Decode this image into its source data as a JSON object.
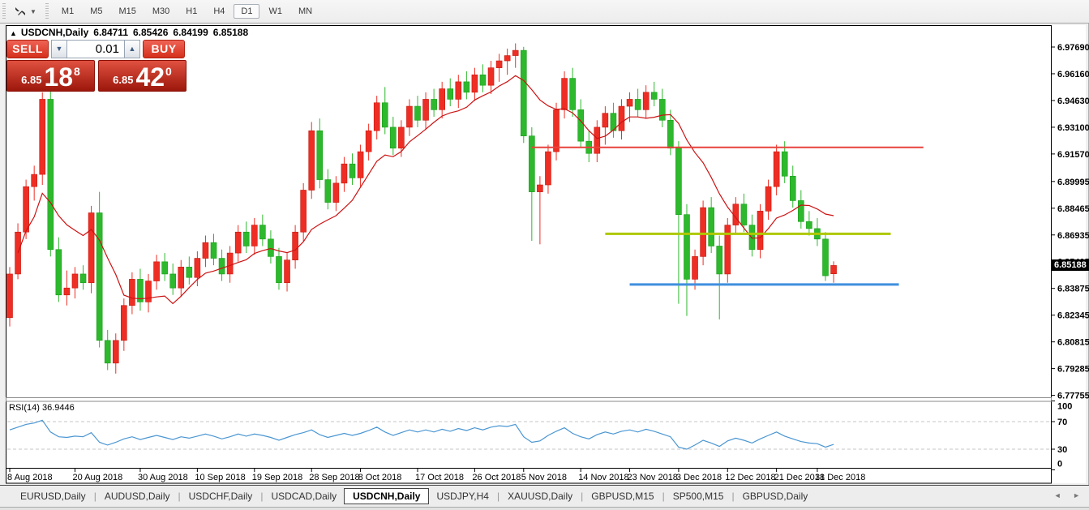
{
  "toolbar": {
    "chart_tool_icon": "trade-arrows",
    "timeframes": [
      "M1",
      "M5",
      "M15",
      "M30",
      "H1",
      "H4",
      "D1",
      "W1",
      "MN"
    ],
    "active_timeframe": "D1"
  },
  "chart_header": {
    "collapse_icon": "▲",
    "symbol": "USDCNH,Daily",
    "open": "6.84711",
    "high": "6.85426",
    "low": "6.84199",
    "close": "6.85188"
  },
  "trade_panel": {
    "sell_label": "SELL",
    "buy_label": "BUY",
    "lot_size": "0.01",
    "spin_down_icon": "▼",
    "spin_up_icon": "▲",
    "sell_price_prefix": "6.85",
    "sell_price_main": "18",
    "sell_price_sup": "8",
    "buy_price_prefix": "6.85",
    "buy_price_main": "42",
    "buy_price_sup": "0"
  },
  "chart_data": {
    "type": "candlestick",
    "symbol": "USDCNH",
    "timeframe": "Daily",
    "ylim": [
      6.77755,
      6.9769
    ],
    "grid": false,
    "up_color": "#ee2e24",
    "down_color": "#2eb82e",
    "price_axis_ticks": [
      "6.97690",
      "6.96160",
      "6.94630",
      "6.93100",
      "6.91570",
      "6.89995",
      "6.88465",
      "6.86935",
      "6.85405",
      "6.83875",
      "6.82345",
      "6.80815",
      "6.79285",
      "6.77755"
    ],
    "current_price": "6.85188",
    "date_labels": [
      {
        "text": "8 Aug 2018",
        "bar": 0
      },
      {
        "text": "20 Aug 2018",
        "bar": 8
      },
      {
        "text": "30 Aug 2018",
        "bar": 16
      },
      {
        "text": "10 Sep 2018",
        "bar": 23
      },
      {
        "text": "19 Sep 2018",
        "bar": 30
      },
      {
        "text": "28 Sep 2018",
        "bar": 37
      },
      {
        "text": "8 Oct 2018",
        "bar": 43
      },
      {
        "text": "17 Oct 2018",
        "bar": 50
      },
      {
        "text": "26 Oct 2018",
        "bar": 57
      },
      {
        "text": "5 Nov 2018",
        "bar": 63
      },
      {
        "text": "14 Nov 2018",
        "bar": 70
      },
      {
        "text": "23 Nov 2018",
        "bar": 76
      },
      {
        "text": "3 Dec 2018",
        "bar": 82
      },
      {
        "text": "12 Dec 2018",
        "bar": 88
      },
      {
        "text": "21 Dec 2018",
        "bar": 94
      },
      {
        "text": "31 Dec 2018",
        "bar": 99
      }
    ],
    "candles": [
      [
        6.822,
        6.851,
        6.817,
        6.847
      ],
      [
        6.847,
        6.876,
        6.844,
        6.871
      ],
      [
        6.871,
        6.901,
        6.867,
        6.897
      ],
      [
        6.897,
        6.909,
        6.889,
        6.904
      ],
      [
        6.904,
        6.951,
        6.898,
        6.947
      ],
      [
        6.947,
        6.957,
        6.857,
        6.861
      ],
      [
        6.861,
        6.868,
        6.831,
        6.835
      ],
      [
        6.835,
        6.849,
        6.829,
        6.839
      ],
      [
        6.839,
        6.851,
        6.833,
        6.847
      ],
      [
        6.847,
        6.852,
        6.838,
        6.842
      ],
      [
        6.842,
        6.886,
        6.836,
        6.882
      ],
      [
        6.882,
        6.894,
        6.805,
        6.809
      ],
      [
        6.809,
        6.815,
        6.792,
        6.796
      ],
      [
        6.796,
        6.813,
        6.79,
        6.809
      ],
      [
        6.809,
        6.833,
        6.803,
        6.829
      ],
      [
        6.829,
        6.848,
        6.824,
        6.844
      ],
      [
        6.844,
        6.85,
        6.826,
        6.831
      ],
      [
        6.831,
        6.847,
        6.825,
        6.843
      ],
      [
        6.843,
        6.858,
        6.838,
        6.854
      ],
      [
        6.854,
        6.859,
        6.843,
        6.847
      ],
      [
        6.847,
        6.853,
        6.835,
        6.839
      ],
      [
        6.839,
        6.855,
        6.834,
        6.851
      ],
      [
        6.851,
        6.857,
        6.841,
        6.845
      ],
      [
        6.845,
        6.86,
        6.84,
        6.856
      ],
      [
        6.856,
        6.869,
        6.851,
        6.865
      ],
      [
        6.865,
        6.87,
        6.852,
        6.856
      ],
      [
        6.856,
        6.861,
        6.843,
        6.847
      ],
      [
        6.847,
        6.863,
        6.842,
        6.859
      ],
      [
        6.859,
        6.875,
        6.854,
        6.871
      ],
      [
        6.871,
        6.877,
        6.859,
        6.863
      ],
      [
        6.863,
        6.879,
        6.858,
        6.875
      ],
      [
        6.875,
        6.881,
        6.863,
        6.867
      ],
      [
        6.867,
        6.872,
        6.853,
        6.857
      ],
      [
        6.857,
        6.862,
        6.838,
        6.842
      ],
      [
        6.842,
        6.859,
        6.837,
        6.855
      ],
      [
        6.855,
        6.875,
        6.85,
        6.871
      ],
      [
        6.871,
        6.899,
        6.866,
        6.895
      ],
      [
        6.895,
        6.934,
        6.89,
        6.929
      ],
      [
        6.929,
        6.936,
        6.896,
        6.901
      ],
      [
        6.901,
        6.907,
        6.884,
        6.888
      ],
      [
        6.888,
        6.903,
        6.883,
        6.899
      ],
      [
        6.899,
        6.914,
        6.894,
        6.91
      ],
      [
        6.91,
        6.916,
        6.898,
        6.902
      ],
      [
        6.902,
        6.921,
        6.897,
        6.917
      ],
      [
        6.917,
        6.933,
        6.912,
        6.929
      ],
      [
        6.929,
        6.949,
        6.924,
        6.945
      ],
      [
        6.945,
        6.954,
        6.927,
        6.931
      ],
      [
        6.931,
        6.937,
        6.915,
        6.919
      ],
      [
        6.919,
        6.935,
        6.914,
        6.931
      ],
      [
        6.931,
        6.947,
        6.926,
        6.943
      ],
      [
        6.943,
        6.949,
        6.931,
        6.935
      ],
      [
        6.935,
        6.951,
        6.93,
        6.947
      ],
      [
        6.947,
        6.953,
        6.937,
        6.941
      ],
      [
        6.941,
        6.957,
        6.936,
        6.953
      ],
      [
        6.953,
        6.959,
        6.943,
        6.947
      ],
      [
        6.947,
        6.961,
        6.942,
        6.957
      ],
      [
        6.957,
        6.963,
        6.947,
        6.951
      ],
      [
        6.951,
        6.965,
        6.946,
        6.961
      ],
      [
        6.961,
        6.967,
        6.951,
        6.955
      ],
      [
        6.955,
        6.969,
        6.95,
        6.965
      ],
      [
        6.965,
        6.973,
        6.957,
        6.969
      ],
      [
        6.969,
        6.976,
        6.961,
        6.972
      ],
      [
        6.972,
        6.979,
        6.965,
        6.975
      ],
      [
        6.975,
        6.977,
        6.922,
        6.926
      ],
      [
        6.926,
        6.931,
        6.866,
        6.894
      ],
      [
        6.894,
        6.903,
        6.864,
        6.898
      ],
      [
        6.898,
        6.921,
        6.893,
        6.917
      ],
      [
        6.917,
        6.945,
        6.912,
        6.941
      ],
      [
        6.941,
        6.963,
        6.936,
        6.959
      ],
      [
        6.959,
        6.965,
        6.937,
        6.941
      ],
      [
        6.941,
        6.947,
        6.919,
        6.923
      ],
      [
        6.923,
        6.929,
        6.911,
        6.916
      ],
      [
        6.916,
        6.935,
        6.911,
        6.931
      ],
      [
        6.931,
        6.943,
        6.921,
        6.939
      ],
      [
        6.939,
        6.945,
        6.925,
        6.929
      ],
      [
        6.929,
        6.947,
        6.924,
        6.943
      ],
      [
        6.943,
        6.951,
        6.934,
        6.947
      ],
      [
        6.947,
        6.953,
        6.937,
        6.941
      ],
      [
        6.941,
        6.955,
        6.936,
        6.951
      ],
      [
        6.951,
        6.957,
        6.943,
        6.947
      ],
      [
        6.947,
        6.953,
        6.931,
        6.935
      ],
      [
        6.935,
        6.941,
        6.915,
        6.919
      ],
      [
        6.919,
        6.923,
        6.83,
        6.881
      ],
      [
        6.881,
        6.887,
        6.823,
        6.844
      ],
      [
        6.844,
        6.861,
        6.838,
        6.857
      ],
      [
        6.857,
        6.889,
        6.852,
        6.885
      ],
      [
        6.885,
        6.891,
        6.859,
        6.863
      ],
      [
        6.863,
        6.869,
        6.821,
        6.847
      ],
      [
        6.847,
        6.879,
        6.842,
        6.875
      ],
      [
        6.875,
        6.891,
        6.87,
        6.887
      ],
      [
        6.887,
        6.893,
        6.871,
        6.875
      ],
      [
        6.875,
        6.881,
        6.857,
        6.861
      ],
      [
        6.861,
        6.887,
        6.856,
        6.883
      ],
      [
        6.883,
        6.901,
        6.878,
        6.897
      ],
      [
        6.897,
        6.921,
        6.892,
        6.917
      ],
      [
        6.917,
        6.923,
        6.899,
        6.903
      ],
      [
        6.903,
        6.909,
        6.885,
        6.889
      ],
      [
        6.889,
        6.895,
        6.873,
        6.877
      ],
      [
        6.877,
        6.883,
        6.869,
        6.873
      ],
      [
        6.873,
        6.879,
        6.863,
        6.867
      ],
      [
        6.867,
        6.871,
        6.843,
        6.846
      ],
      [
        6.84711,
        6.85426,
        6.84199,
        6.85188
      ]
    ],
    "ma": {
      "period": 10,
      "color": "#cc1212"
    },
    "hlines": [
      {
        "color": "#e8423c",
        "price": 6.9195,
        "from_bar": 64,
        "to_bar": 112,
        "width": 2
      },
      {
        "color": "#aec800",
        "price": 6.87,
        "from_bar": 73,
        "to_bar": 108,
        "width": 3
      },
      {
        "color": "#3f8fdf",
        "price": 6.841,
        "from_bar": 76,
        "to_bar": 109,
        "width": 3
      }
    ],
    "rsi": {
      "label": "RSI(14) 36.9446",
      "period": 14,
      "value": 36.9446,
      "levels": [
        70,
        30
      ],
      "scale_ticks": [
        "100",
        "70",
        "30",
        "0"
      ],
      "color": "#4a96d2",
      "series": [
        58,
        62,
        66,
        68,
        72,
        55,
        48,
        47,
        49,
        48,
        54,
        40,
        36,
        40,
        45,
        48,
        44,
        47,
        50,
        47,
        44,
        48,
        46,
        49,
        52,
        49,
        45,
        48,
        52,
        49,
        52,
        50,
        47,
        43,
        47,
        51,
        54,
        58,
        51,
        47,
        50,
        53,
        50,
        53,
        57,
        62,
        55,
        50,
        54,
        58,
        55,
        58,
        55,
        59,
        56,
        60,
        57,
        61,
        58,
        62,
        64,
        63,
        66,
        48,
        40,
        42,
        50,
        56,
        61,
        53,
        48,
        45,
        51,
        55,
        52,
        56,
        58,
        55,
        59,
        56,
        52,
        48,
        33,
        30,
        36,
        43,
        39,
        34,
        42,
        46,
        43,
        39,
        45,
        50,
        55,
        49,
        45,
        41,
        39,
        38,
        33,
        36.9
      ]
    }
  },
  "tabs": {
    "items": [
      {
        "label": "EURUSD,Daily",
        "active": false
      },
      {
        "label": "AUDUSD,Daily",
        "active": false
      },
      {
        "label": "USDCHF,Daily",
        "active": false
      },
      {
        "label": "USDCAD,Daily",
        "active": false
      },
      {
        "label": "USDCNH,Daily",
        "active": true
      },
      {
        "label": "USDJPY,H4",
        "active": false
      },
      {
        "label": "XAUUSD,Daily",
        "active": false
      },
      {
        "label": "GBPUSD,M15",
        "active": false
      },
      {
        "label": "SP500,M15",
        "active": false
      },
      {
        "label": "GBPUSD,Daily",
        "active": false
      }
    ],
    "nav_left_icon": "◄",
    "nav_right_icon": "►"
  }
}
